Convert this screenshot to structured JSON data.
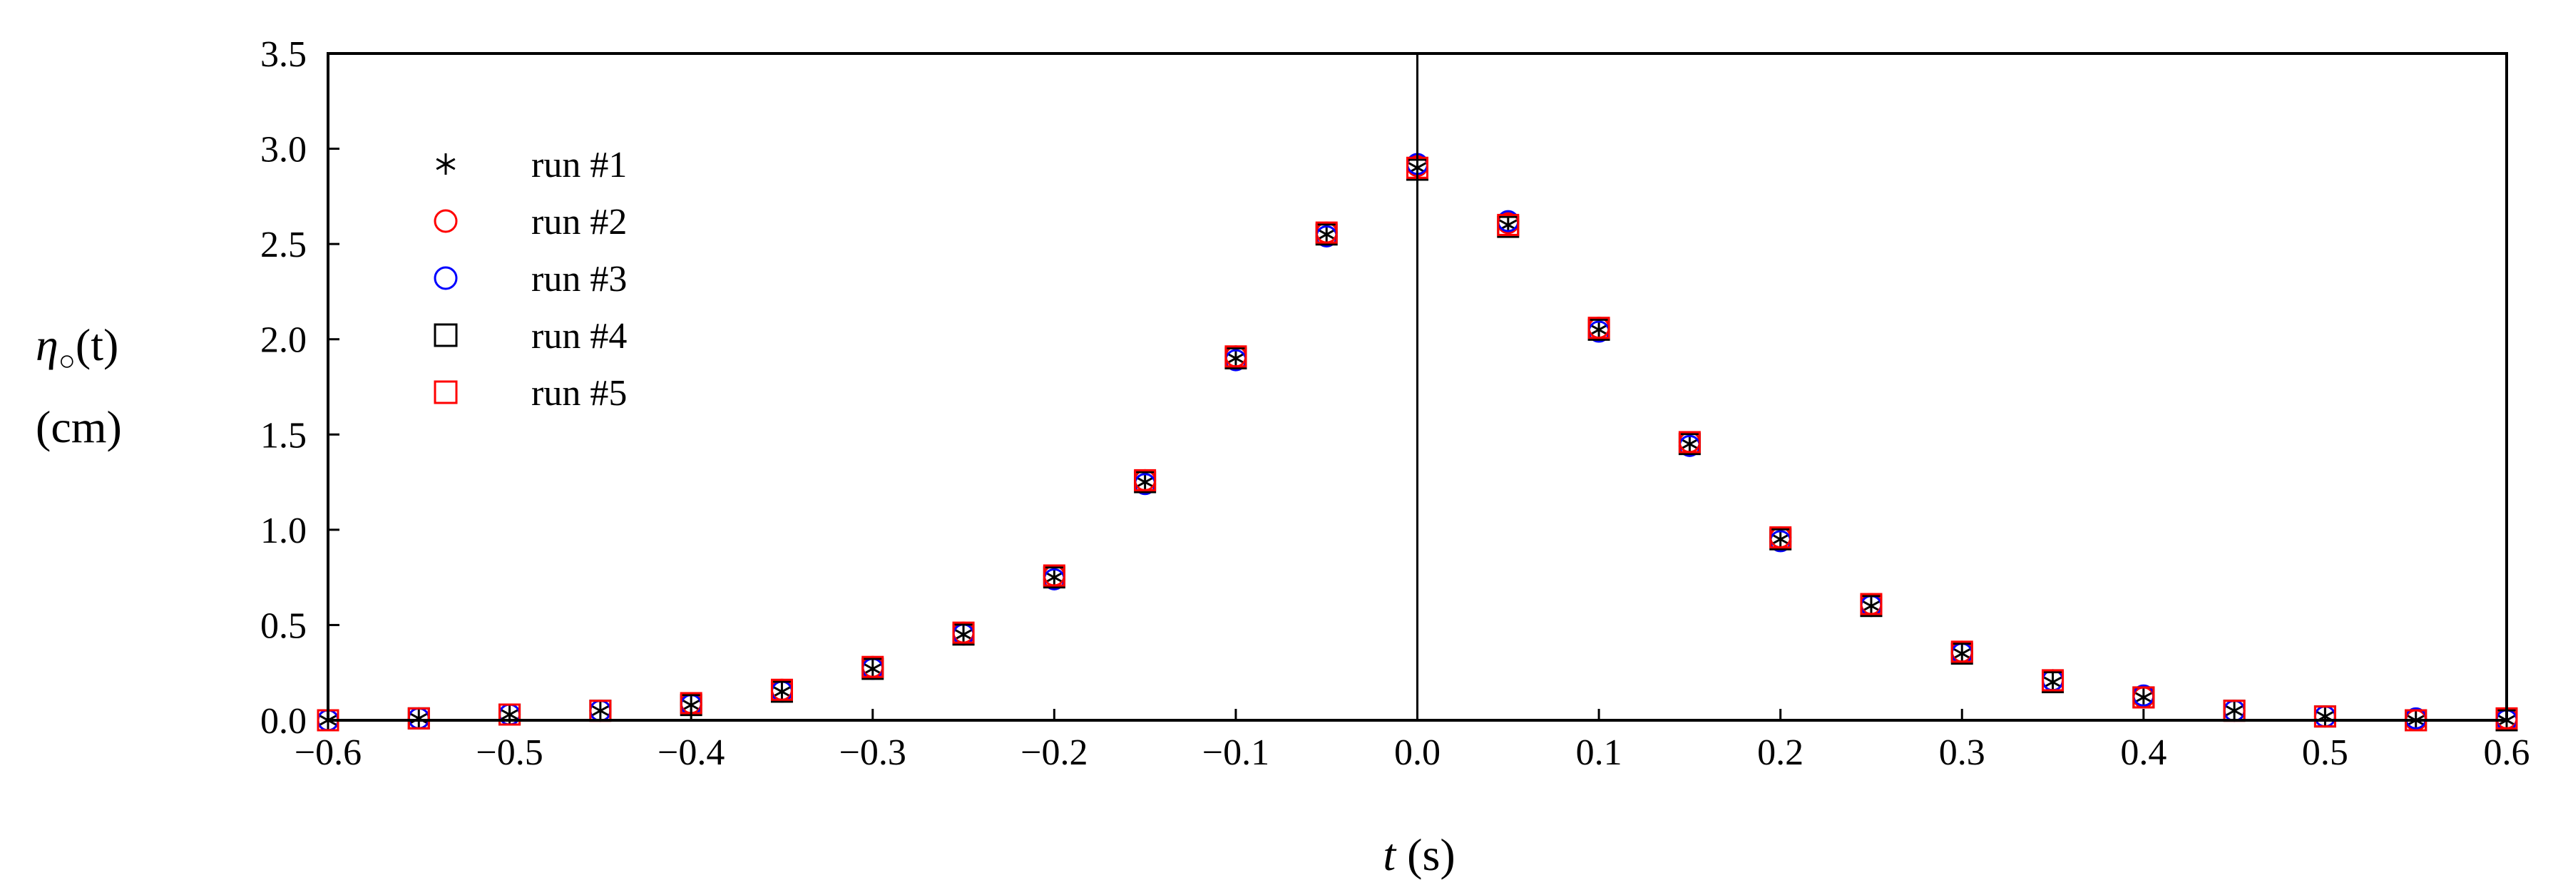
{
  "chart_data": {
    "type": "scatter",
    "title": "",
    "xlabel_var": "t",
    "xlabel_unit": " (s)",
    "ylabel_var": "η",
    "ylabel_sub": "○",
    "ylabel_arg": "(t)",
    "ylabel_unit": "(cm)",
    "xlim": [
      -0.6,
      0.6
    ],
    "ylim": [
      0.0,
      3.5
    ],
    "x_ticks": [
      "−0.6",
      "−0.5",
      "−0.4",
      "−0.3",
      "−0.2",
      "−0.1",
      "0.0",
      "0.1",
      "0.2",
      "0.3",
      "0.4",
      "0.5",
      "0.6"
    ],
    "y_ticks": [
      "0.0",
      "0.5",
      "1.0",
      "1.5",
      "2.0",
      "2.5",
      "3.0",
      "3.5"
    ],
    "x_tick_values": [
      -0.6,
      -0.5,
      -0.4,
      -0.3,
      -0.2,
      -0.1,
      0.0,
      0.1,
      0.2,
      0.3,
      0.4,
      0.5,
      0.6
    ],
    "y_tick_values": [
      0.0,
      0.5,
      1.0,
      1.5,
      2.0,
      2.5,
      3.0,
      3.5
    ],
    "vertical_line_x": 0.0,
    "grid": false,
    "legend_position": "top-left",
    "x": [
      -0.6,
      -0.55,
      -0.5,
      -0.45,
      -0.4,
      -0.35,
      -0.3,
      -0.25,
      -0.2,
      -0.15,
      -0.1,
      -0.05,
      0.0,
      0.05,
      0.1,
      0.15,
      0.2,
      0.25,
      0.3,
      0.35,
      0.4,
      0.45,
      0.5,
      0.55,
      0.6
    ],
    "series": [
      {
        "name": "run #1",
        "marker": "asterisk",
        "color": "#000000",
        "values": [
          0.0,
          0.01,
          0.03,
          0.05,
          0.08,
          0.15,
          0.27,
          0.45,
          0.75,
          1.25,
          1.9,
          2.55,
          2.9,
          2.6,
          2.05,
          1.45,
          0.95,
          0.6,
          0.35,
          0.2,
          0.12,
          0.05,
          0.02,
          0.0,
          0.0
        ]
      },
      {
        "name": "run #2",
        "marker": "circle",
        "color": "#ff0000",
        "values": [
          0.0,
          0.01,
          0.03,
          0.05,
          0.09,
          0.16,
          0.28,
          0.46,
          0.76,
          1.26,
          1.91,
          2.56,
          2.91,
          2.61,
          2.06,
          1.46,
          0.96,
          0.61,
          0.36,
          0.21,
          0.12,
          0.05,
          0.02,
          0.0,
          0.01
        ]
      },
      {
        "name": "run #3",
        "marker": "circle",
        "color": "#0000ff",
        "values": [
          0.0,
          0.01,
          0.03,
          0.05,
          0.08,
          0.15,
          0.27,
          0.45,
          0.74,
          1.24,
          1.89,
          2.54,
          2.92,
          2.62,
          2.04,
          1.44,
          0.94,
          0.6,
          0.35,
          0.21,
          0.13,
          0.05,
          0.02,
          0.01,
          0.0
        ]
      },
      {
        "name": "run #4",
        "marker": "square",
        "color": "#000000",
        "values": [
          0.0,
          0.01,
          0.03,
          0.05,
          0.08,
          0.15,
          0.27,
          0.45,
          0.75,
          1.25,
          1.9,
          2.55,
          2.89,
          2.59,
          2.05,
          1.45,
          0.95,
          0.6,
          0.35,
          0.2,
          0.12,
          0.05,
          0.02,
          0.0,
          0.0
        ]
      },
      {
        "name": "run #5",
        "marker": "square",
        "color": "#ff0000",
        "values": [
          0.0,
          0.01,
          0.03,
          0.05,
          0.09,
          0.16,
          0.28,
          0.46,
          0.76,
          1.26,
          1.91,
          2.56,
          2.9,
          2.6,
          2.06,
          1.46,
          0.96,
          0.61,
          0.36,
          0.21,
          0.12,
          0.05,
          0.02,
          0.0,
          0.01
        ]
      }
    ]
  }
}
